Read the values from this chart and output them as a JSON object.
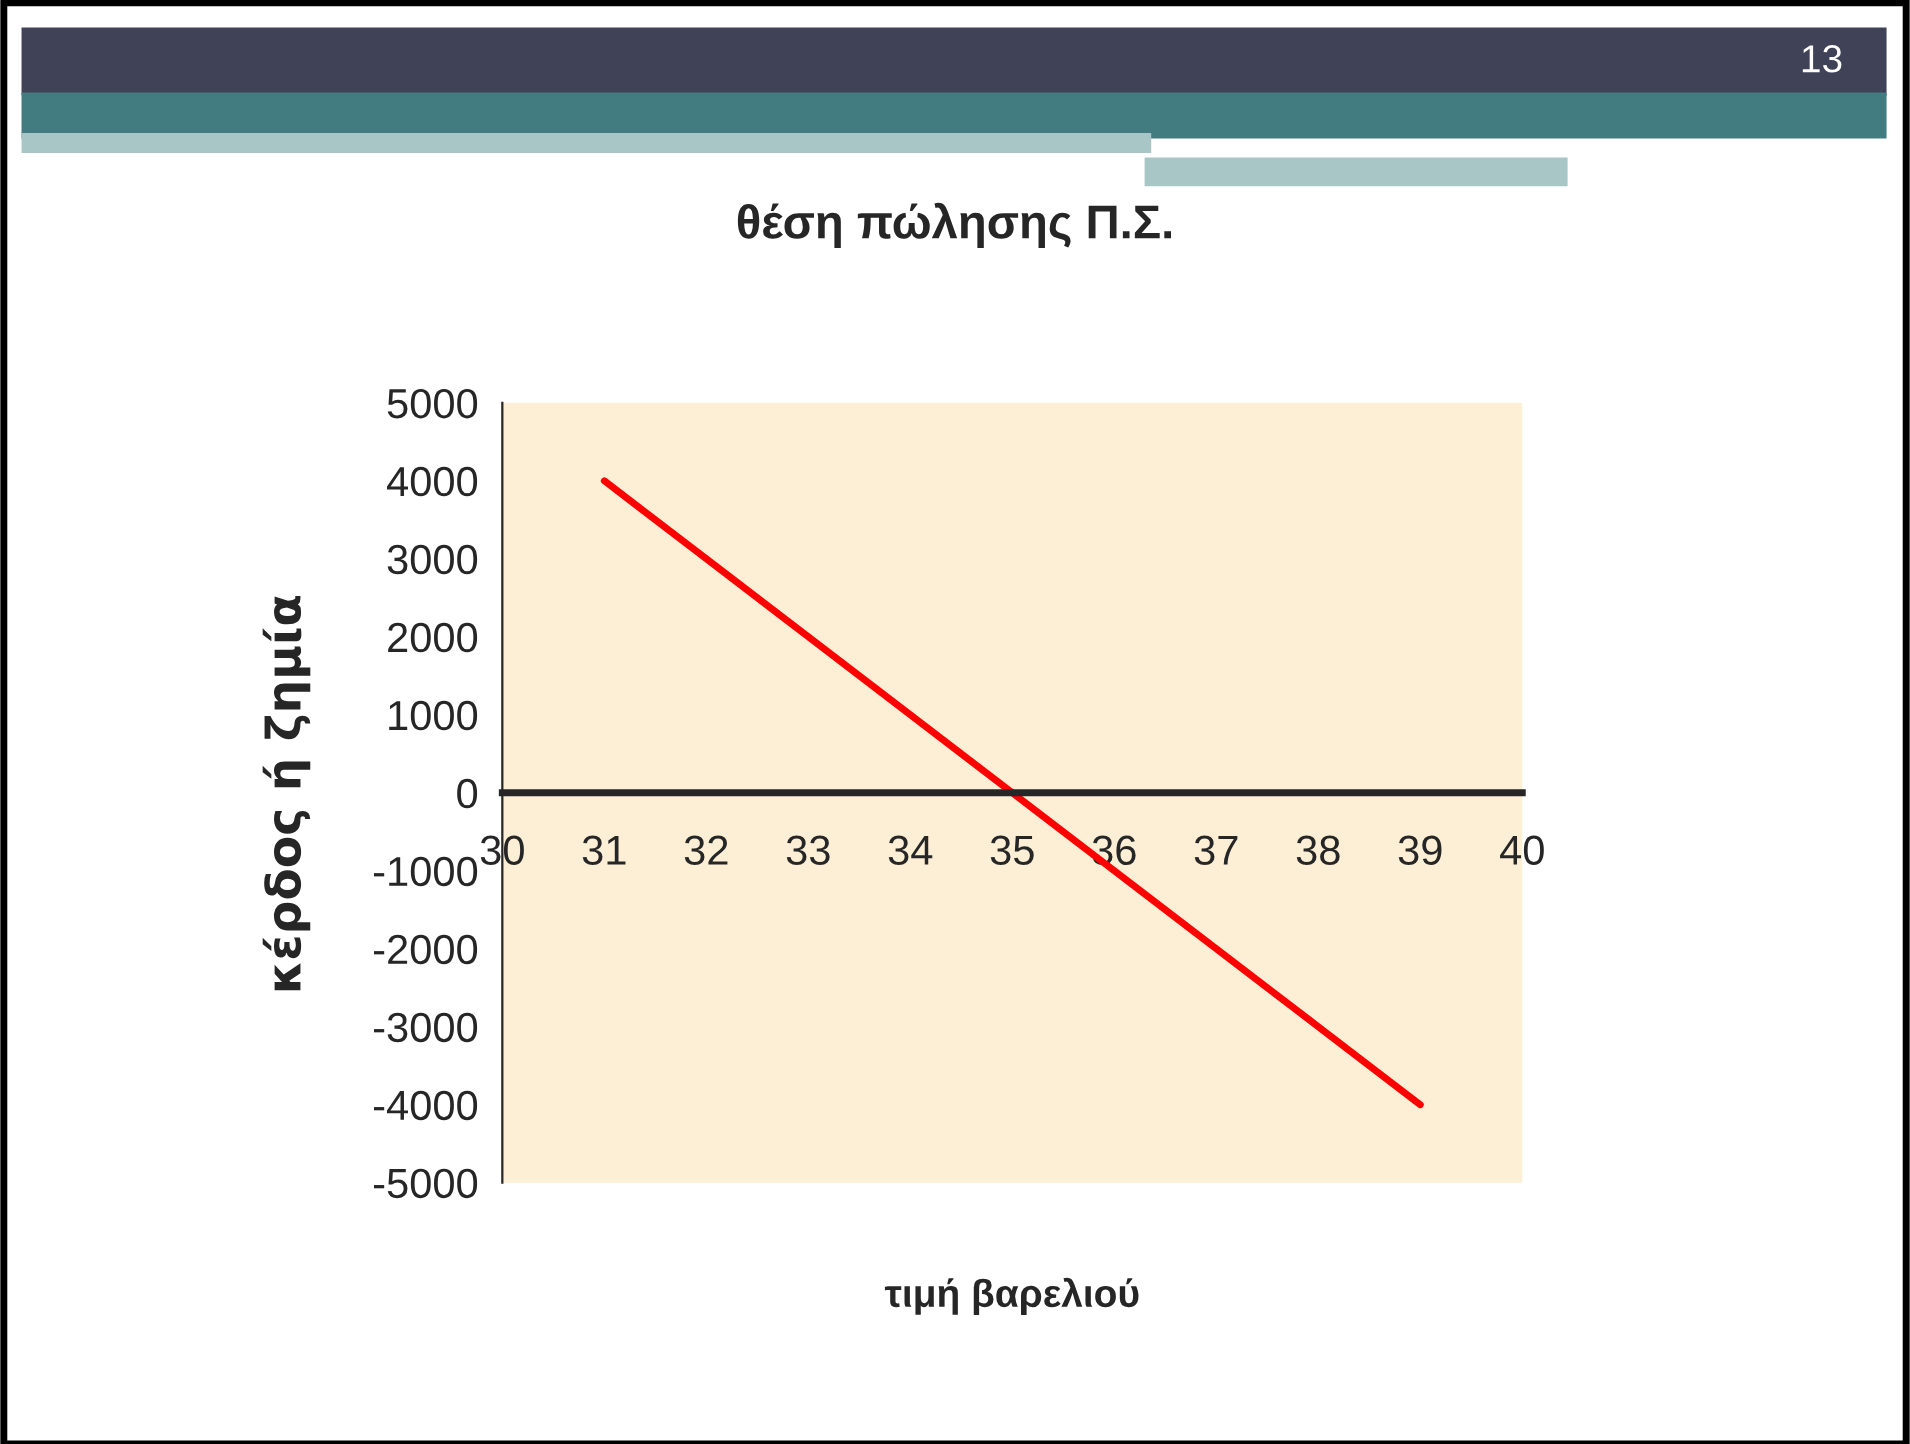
{
  "chart_data": {
    "type": "line",
    "title": "θέση πώλησης Π.Σ.",
    "xlabel": "τιμή βαρελιού",
    "ylabel": "κέρδος ή ζημία",
    "x": [
      31,
      32,
      33,
      34,
      35,
      36,
      37,
      38,
      39
    ],
    "series": [
      {
        "color": "#ff0000",
        "values": [
          4000,
          3000,
          2000,
          1000,
          0,
          -1000,
          -2000,
          -3000,
          -4000
        ]
      }
    ],
    "xlim": [
      30,
      40
    ],
    "xticks": [
      30,
      31,
      32,
      33,
      34,
      35,
      36,
      37,
      38,
      39,
      40
    ],
    "ylim": [
      -5000,
      5000
    ],
    "yticks": [
      -5000,
      -4000,
      -3000,
      -2000,
      -1000,
      0,
      1000,
      2000,
      3000,
      4000,
      5000
    ],
    "grid": false,
    "legend": false,
    "marker": "none",
    "line_style": "solid",
    "annotations": [
      "13"
    ]
  }
}
